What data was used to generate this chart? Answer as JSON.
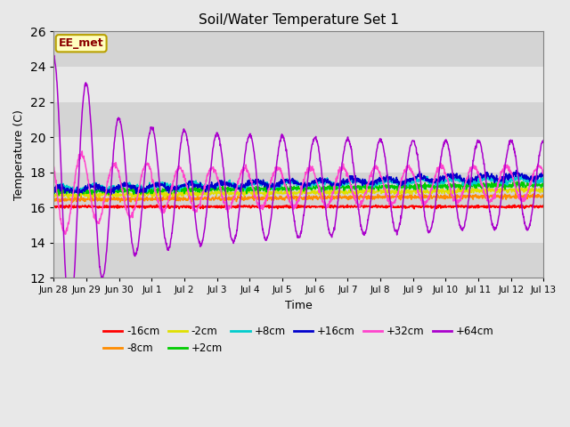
{
  "title": "Soil/Water Temperature Set 1",
  "xlabel": "Time",
  "ylabel": "Temperature (C)",
  "ylim": [
    12,
    26
  ],
  "yticks": [
    12,
    14,
    16,
    18,
    20,
    22,
    24,
    26
  ],
  "plot_bg_color": "#e8e8e8",
  "band_colors": [
    "#d4d4d4",
    "#e8e8e8",
    "#d4d4d4",
    "#e8e8e8",
    "#d4d4d4",
    "#e8e8e8",
    "#d4d4d4"
  ],
  "annotation_text": "EE_met",
  "annotation_bg": "#ffffc0",
  "annotation_border": "#b8a000",
  "annotation_text_color": "#8b0000",
  "series_colors": {
    "-16cm": "#ff0000",
    "-8cm": "#ff8c00",
    "-2cm": "#e0e000",
    "+2cm": "#00cc00",
    "+8cm": "#00cccc",
    "+16cm": "#0000cc",
    "+32cm": "#ff44cc",
    "+64cm": "#aa00cc"
  },
  "tick_labels": [
    "Jun 28",
    "Jun 29",
    "Jun 30",
    "Jul 1",
    "Jul 2",
    "Jul 3",
    "Jul 4",
    "Jul 5",
    "Jul 6",
    "Jul 7",
    "Jul 8",
    "Jul 9",
    "Jul 10",
    "Jul 11",
    "Jul 12",
    "Jul 13"
  ],
  "tick_positions": [
    0,
    1,
    2,
    3,
    4,
    5,
    6,
    7,
    8,
    9,
    10,
    11,
    12,
    13,
    14,
    15
  ]
}
